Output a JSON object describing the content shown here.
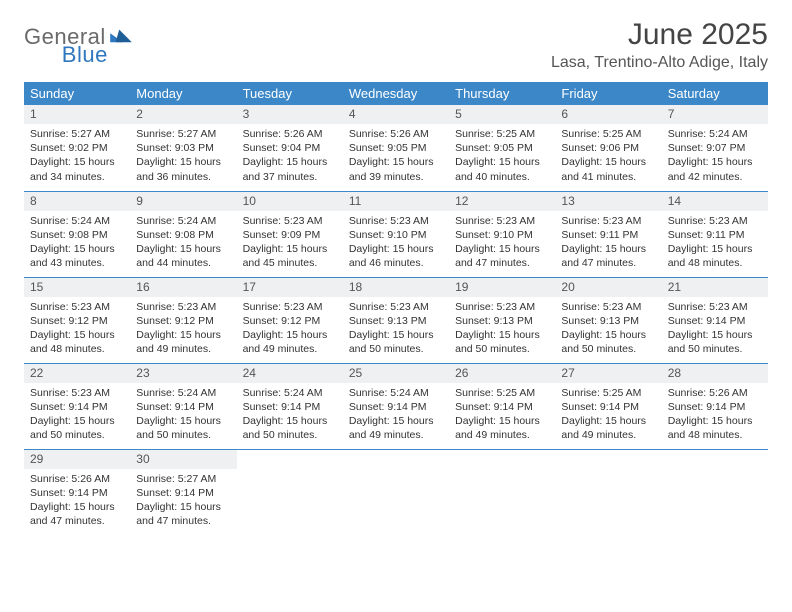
{
  "brand": {
    "general": "General",
    "blue": "Blue"
  },
  "title": "June 2025",
  "subtitle": "Lasa, Trentino-Alto Adige, Italy",
  "colors": {
    "header_bg": "#3b87c8",
    "header_fg": "#ffffff",
    "daynum_bg": "#eef0f1",
    "rule": "#3b87c8",
    "brand_gray": "#6a6a6a",
    "brand_blue": "#2f78bf"
  },
  "weekdays": [
    "Sunday",
    "Monday",
    "Tuesday",
    "Wednesday",
    "Thursday",
    "Friday",
    "Saturday"
  ],
  "days": [
    {
      "n": 1,
      "sr": "5:27 AM",
      "ss": "9:02 PM",
      "dl": "15 hours and 34 minutes."
    },
    {
      "n": 2,
      "sr": "5:27 AM",
      "ss": "9:03 PM",
      "dl": "15 hours and 36 minutes."
    },
    {
      "n": 3,
      "sr": "5:26 AM",
      "ss": "9:04 PM",
      "dl": "15 hours and 37 minutes."
    },
    {
      "n": 4,
      "sr": "5:26 AM",
      "ss": "9:05 PM",
      "dl": "15 hours and 39 minutes."
    },
    {
      "n": 5,
      "sr": "5:25 AM",
      "ss": "9:05 PM",
      "dl": "15 hours and 40 minutes."
    },
    {
      "n": 6,
      "sr": "5:25 AM",
      "ss": "9:06 PM",
      "dl": "15 hours and 41 minutes."
    },
    {
      "n": 7,
      "sr": "5:24 AM",
      "ss": "9:07 PM",
      "dl": "15 hours and 42 minutes."
    },
    {
      "n": 8,
      "sr": "5:24 AM",
      "ss": "9:08 PM",
      "dl": "15 hours and 43 minutes."
    },
    {
      "n": 9,
      "sr": "5:24 AM",
      "ss": "9:08 PM",
      "dl": "15 hours and 44 minutes."
    },
    {
      "n": 10,
      "sr": "5:23 AM",
      "ss": "9:09 PM",
      "dl": "15 hours and 45 minutes."
    },
    {
      "n": 11,
      "sr": "5:23 AM",
      "ss": "9:10 PM",
      "dl": "15 hours and 46 minutes."
    },
    {
      "n": 12,
      "sr": "5:23 AM",
      "ss": "9:10 PM",
      "dl": "15 hours and 47 minutes."
    },
    {
      "n": 13,
      "sr": "5:23 AM",
      "ss": "9:11 PM",
      "dl": "15 hours and 47 minutes."
    },
    {
      "n": 14,
      "sr": "5:23 AM",
      "ss": "9:11 PM",
      "dl": "15 hours and 48 minutes."
    },
    {
      "n": 15,
      "sr": "5:23 AM",
      "ss": "9:12 PM",
      "dl": "15 hours and 48 minutes."
    },
    {
      "n": 16,
      "sr": "5:23 AM",
      "ss": "9:12 PM",
      "dl": "15 hours and 49 minutes."
    },
    {
      "n": 17,
      "sr": "5:23 AM",
      "ss": "9:12 PM",
      "dl": "15 hours and 49 minutes."
    },
    {
      "n": 18,
      "sr": "5:23 AM",
      "ss": "9:13 PM",
      "dl": "15 hours and 50 minutes."
    },
    {
      "n": 19,
      "sr": "5:23 AM",
      "ss": "9:13 PM",
      "dl": "15 hours and 50 minutes."
    },
    {
      "n": 20,
      "sr": "5:23 AM",
      "ss": "9:13 PM",
      "dl": "15 hours and 50 minutes."
    },
    {
      "n": 21,
      "sr": "5:23 AM",
      "ss": "9:14 PM",
      "dl": "15 hours and 50 minutes."
    },
    {
      "n": 22,
      "sr": "5:23 AM",
      "ss": "9:14 PM",
      "dl": "15 hours and 50 minutes."
    },
    {
      "n": 23,
      "sr": "5:24 AM",
      "ss": "9:14 PM",
      "dl": "15 hours and 50 minutes."
    },
    {
      "n": 24,
      "sr": "5:24 AM",
      "ss": "9:14 PM",
      "dl": "15 hours and 50 minutes."
    },
    {
      "n": 25,
      "sr": "5:24 AM",
      "ss": "9:14 PM",
      "dl": "15 hours and 49 minutes."
    },
    {
      "n": 26,
      "sr": "5:25 AM",
      "ss": "9:14 PM",
      "dl": "15 hours and 49 minutes."
    },
    {
      "n": 27,
      "sr": "5:25 AM",
      "ss": "9:14 PM",
      "dl": "15 hours and 49 minutes."
    },
    {
      "n": 28,
      "sr": "5:26 AM",
      "ss": "9:14 PM",
      "dl": "15 hours and 48 minutes."
    },
    {
      "n": 29,
      "sr": "5:26 AM",
      "ss": "9:14 PM",
      "dl": "15 hours and 47 minutes."
    },
    {
      "n": 30,
      "sr": "5:27 AM",
      "ss": "9:14 PM",
      "dl": "15 hours and 47 minutes."
    }
  ],
  "labels": {
    "sunrise": "Sunrise:",
    "sunset": "Sunset:",
    "daylight": "Daylight:"
  }
}
